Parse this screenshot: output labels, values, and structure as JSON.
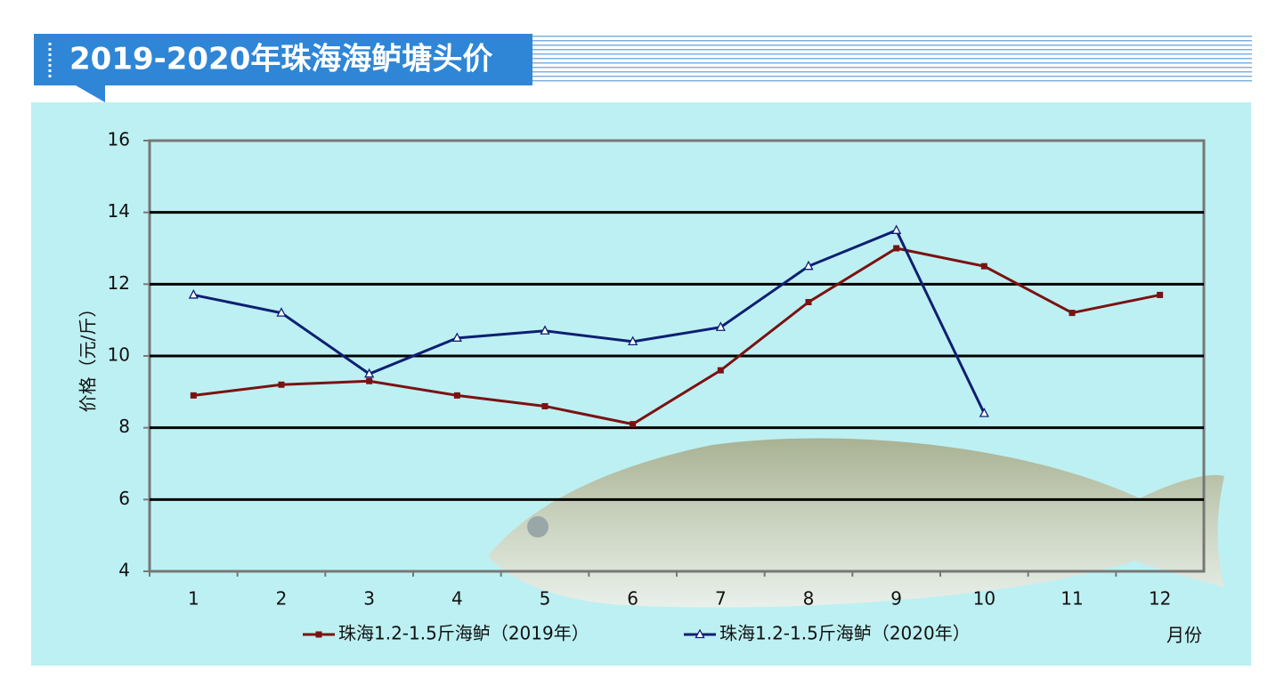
{
  "chart_data": {
    "type": "line",
    "title": "2019-2020年珠海海鲈塘头价",
    "y_label": "价格（元/斤）",
    "x_label": "月份",
    "categories": [
      "1",
      "2",
      "3",
      "4",
      "5",
      "6",
      "7",
      "8",
      "9",
      "10",
      "11",
      "12"
    ],
    "series": [
      {
        "name": "珠海1.2-1.5斤海鲈（2019年）",
        "color": "#7b1212",
        "marker": "square",
        "values": [
          8.9,
          9.2,
          9.3,
          8.9,
          8.6,
          8.1,
          9.6,
          11.5,
          13.0,
          12.5,
          11.2,
          11.7
        ]
      },
      {
        "name": "珠海1.2-1.5斤海鲈（2020年）",
        "color": "#0d1f72",
        "marker": "triangle",
        "values": [
          11.7,
          11.2,
          9.5,
          10.5,
          10.7,
          10.4,
          10.8,
          12.5,
          13.5,
          8.4,
          null,
          null
        ]
      }
    ],
    "ylim": [
      4,
      16
    ],
    "yticks": [
      4,
      6,
      8,
      10,
      12,
      14,
      16
    ],
    "grid": true,
    "legend": "bottom"
  }
}
